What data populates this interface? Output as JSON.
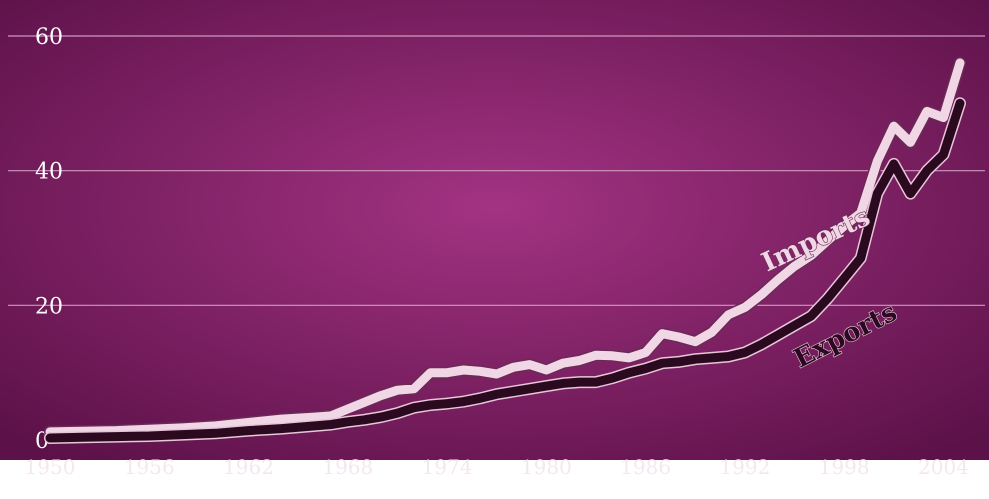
{
  "colors": {
    "background_center": "#a33383",
    "background_edge": "#5c1148",
    "grid": "#d9a6c9",
    "imports_fill": "#f1d6e6",
    "imports_edge": "#6a2a55",
    "exports_fill": "#2b0a20",
    "exports_edge": "#e8c6da",
    "tick_text": "#ffffff"
  },
  "chart_data": {
    "type": "line",
    "title": "",
    "xlabel": "",
    "ylabel": "",
    "xlim": [
      1950,
      2005
    ],
    "ylim": [
      0,
      60
    ],
    "grid": true,
    "y_ticks": [
      "0",
      "20",
      "40",
      "60"
    ],
    "x_ticks": [
      "1950",
      "1956",
      "1962",
      "1968",
      "1974",
      "1980",
      "1986",
      "1992",
      "1998",
      "2004"
    ],
    "x": [
      1950,
      1952,
      1954,
      1956,
      1958,
      1960,
      1962,
      1964,
      1966,
      1967,
      1968,
      1969,
      1970,
      1971,
      1972,
      1973,
      1974,
      1975,
      1976,
      1977,
      1978,
      1979,
      1980,
      1981,
      1982,
      1983,
      1984,
      1985,
      1986,
      1987,
      1988,
      1989,
      1990,
      1991,
      1992,
      1993,
      1994,
      1995,
      1996,
      1997,
      1998,
      1999,
      2000,
      2001,
      2002,
      2003,
      2004,
      2005
    ],
    "series": [
      {
        "name": "Imports",
        "values": [
          1.2,
          1.3,
          1.4,
          1.6,
          1.8,
          2.1,
          2.6,
          3.1,
          3.4,
          3.6,
          4.6,
          5.6,
          6.6,
          7.4,
          7.6,
          10.0,
          10.0,
          10.4,
          10.2,
          9.8,
          10.8,
          11.2,
          10.4,
          11.4,
          11.8,
          12.6,
          12.5,
          12.2,
          13.0,
          15.8,
          15.3,
          14.6,
          16.0,
          18.6,
          19.7,
          21.6,
          23.8,
          25.8,
          27.4,
          29.6,
          31.8,
          33.7,
          41.4,
          46.6,
          44.2,
          48.8,
          47.9,
          56.0
        ]
      },
      {
        "name": "Exports",
        "values": [
          0.3,
          0.4,
          0.5,
          0.6,
          0.8,
          1.0,
          1.4,
          1.7,
          2.1,
          2.3,
          2.7,
          3.0,
          3.4,
          4.0,
          4.8,
          5.2,
          5.4,
          5.7,
          6.2,
          6.8,
          7.2,
          7.6,
          8.0,
          8.4,
          8.6,
          8.6,
          9.2,
          10.0,
          10.6,
          11.4,
          11.6,
          12.0,
          12.2,
          12.4,
          13.0,
          14.2,
          15.6,
          17.0,
          18.4,
          21.0,
          24.0,
          27.0,
          36.6,
          41.0,
          36.6,
          40.0,
          42.4,
          50.0
        ]
      }
    ],
    "annotations": [
      {
        "text": "Imports",
        "x": 1996.5,
        "y": 28.6,
        "angle": -25,
        "series": "Imports"
      },
      {
        "text": "Exports",
        "x": 1998.3,
        "y": 14.4,
        "angle": -27,
        "series": "Exports"
      }
    ]
  }
}
